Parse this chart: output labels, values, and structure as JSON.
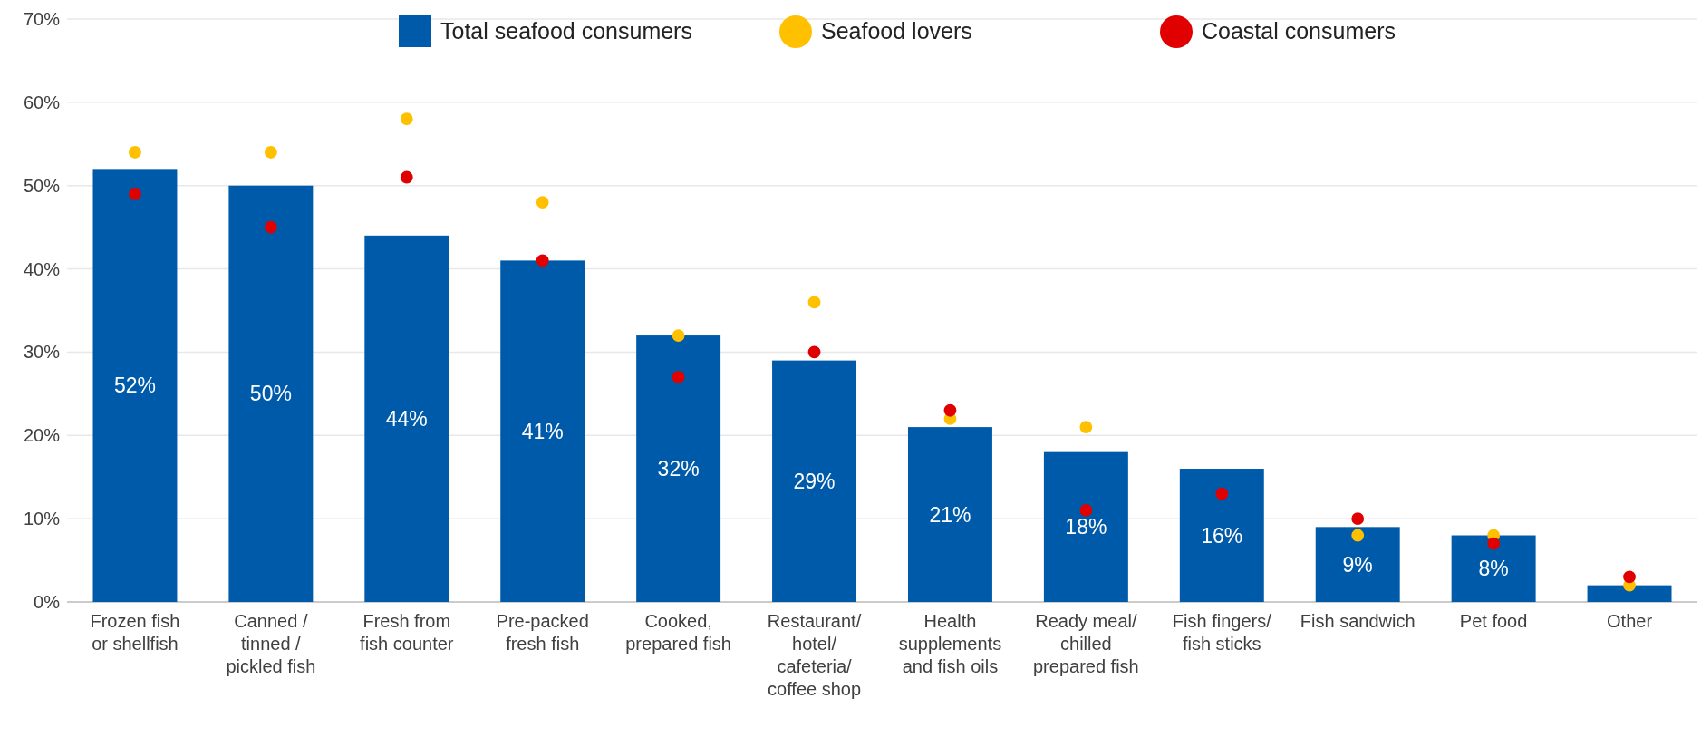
{
  "chart_data": {
    "type": "bar",
    "categories": [
      "Frozen fish or shellfish",
      "Canned / tinned / pickled fish",
      "Fresh from fish counter",
      "Pre-packed fresh fish",
      "Cooked, prepared fish",
      "Restaurant/ hotel/ cafeteria/ coffee shop",
      "Health supplements and fish oils",
      "Ready meal/chilled prepared fish",
      "Fish fingers/fish sticks",
      "Fish sandwich",
      "Pet food",
      "Other"
    ],
    "series": [
      {
        "name": "Total seafood consumers",
        "color": "#005aaa",
        "values": [
          52,
          50,
          44,
          41,
          32,
          29,
          21,
          18,
          16,
          9,
          8,
          2
        ],
        "value_labels": [
          "52%",
          "50%",
          "44%",
          "41%",
          "32%",
          "29%",
          "21%",
          "18%",
          "16%",
          "9%",
          "8%",
          null
        ]
      },
      {
        "name": "Seafood lovers",
        "type": "scatter",
        "color": "#ffc000",
        "values": [
          54,
          54,
          58,
          48,
          32,
          36,
          22,
          21,
          null,
          8,
          8,
          2
        ]
      },
      {
        "name": "Coastal consumers",
        "type": "scatter",
        "color": "#e00000",
        "values": [
          49,
          45,
          51,
          41,
          27,
          30,
          23,
          11,
          13,
          10,
          7,
          3
        ]
      }
    ],
    "ylim": [
      0,
      70
    ],
    "yticks": [
      {
        "value": 0,
        "label": "0%"
      },
      {
        "value": 10,
        "label": "10%"
      },
      {
        "value": 20,
        "label": "20%"
      },
      {
        "value": 30,
        "label": "30%"
      },
      {
        "value": 40,
        "label": "40%"
      },
      {
        "value": 50,
        "label": "50%"
      },
      {
        "value": 60,
        "label": "60%"
      },
      {
        "value": 70,
        "label": "70%"
      }
    ],
    "grid": "y",
    "legend": "top",
    "marker": "circle"
  }
}
